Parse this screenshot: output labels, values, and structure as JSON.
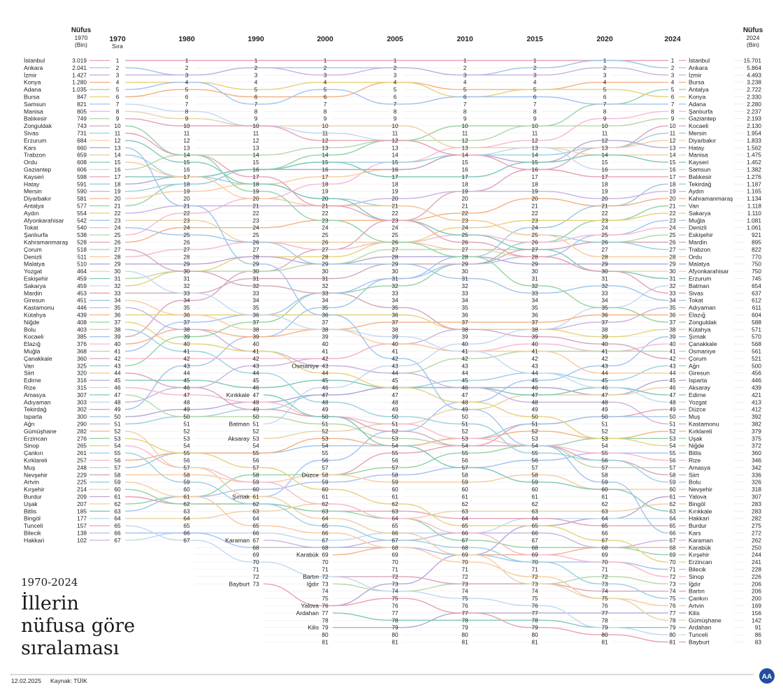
{
  "chart_data": {
    "type": "bump",
    "title": "İllerin nüfusa göre sıralaması",
    "title_lines": [
      "İllerin",
      "nüfusa göre",
      "sıralaması"
    ],
    "period": "1970-2024",
    "years": [
      "1970",
      "1980",
      "1990",
      "2000",
      "2005",
      "2010",
      "2015",
      "2020",
      "2024"
    ],
    "rank_header": "Sıra",
    "left_header": {
      "line1": "Nüfus",
      "line2": "1970",
      "line3": "(Bin)"
    },
    "right_header": {
      "line1": "Nüfus",
      "line2": "2024",
      "line3": "(Bin)"
    },
    "date": "12.02.2025",
    "source": "Kaynak: TÜİK",
    "logo_text": "AA",
    "palette": [
      "#e8a0b4",
      "#9fc5e8",
      "#c9b3e0",
      "#f4b183",
      "#93d3a2",
      "#e6d27a",
      "#a4c2f4",
      "#f6b8d0",
      "#b6d7a8",
      "#d5a6bd",
      "#9ad0e0",
      "#f9cb9c",
      "#b4a7d6",
      "#ead1a4",
      "#7fc8b6",
      "#c2d8f2"
    ],
    "lines_1970": {
      "ranks": [
        1,
        2,
        3,
        4,
        5,
        6,
        7,
        8,
        9,
        10,
        11,
        12,
        13,
        14,
        15,
        16,
        17,
        18,
        19,
        20,
        21,
        22,
        23,
        24,
        25,
        26,
        27,
        28,
        29,
        30,
        31,
        32,
        33,
        34,
        35,
        36,
        37,
        38,
        39,
        40,
        41,
        42,
        43,
        44,
        45,
        46,
        47,
        48,
        49,
        50,
        51,
        52,
        53,
        54,
        55,
        56,
        57,
        58,
        59,
        60,
        61,
        62,
        63,
        64,
        65,
        66,
        67
      ],
      "provinces": [
        "İstanbul",
        "Ankara",
        "İzmir",
        "Konya",
        "Adana",
        "Bursa",
        "Samsun",
        "Manisa",
        "Balıkesir",
        "Zonguldak",
        "Sivas",
        "Erzurum",
        "Kars",
        "Trabzon",
        "Ordu",
        "Gaziantep",
        "Kayseri",
        "Hatay",
        "Mersin",
        "Diyarbakır",
        "Antalya",
        "Aydın",
        "Afyonkarahisar",
        "Tokat",
        "Şanlıurfa",
        "Kahramanmaraş",
        "Çorum",
        "Denizli",
        "Malatya",
        "Yozgat",
        "Eskişehir",
        "Sakarya",
        "Mardin",
        "Giresun",
        "Kastamonu",
        "Kütahya",
        "Niğde",
        "Bolu",
        "Kocaeli",
        "Elazığ",
        "Muğla",
        "Çanakkale",
        "Van",
        "Siirt",
        "Edirne",
        "Rize",
        "Amasya",
        "Adıyaman",
        "Tekirdağ",
        "Isparta",
        "Ağrı",
        "Gümüşhane",
        "Erzincan",
        "Sinop",
        "Çankırı",
        "Kırklareli",
        "Muş",
        "Nevşehir",
        "Artvin",
        "Kırşehir",
        "Burdur",
        "Uşak",
        "Bitlis",
        "Bingöl",
        "Tunceli",
        "Bilecik",
        "Hakkari"
      ],
      "population": [
        "3.019",
        "2.041",
        "1.427",
        "1.280",
        "1.035",
        "847",
        "821",
        "805",
        "749",
        "743",
        "731",
        "684",
        "660",
        "659",
        "608",
        "606",
        "598",
        "591",
        "590",
        "581",
        "577",
        "554",
        "542",
        "540",
        "538",
        "528",
        "518",
        "511",
        "510",
        "464",
        "459",
        "459",
        "453",
        "451",
        "446",
        "439",
        "408",
        "403",
        "385",
        "376",
        "368",
        "360",
        "325",
        "320",
        "316",
        "315",
        "307",
        "303",
        "302",
        "300",
        "290",
        "282",
        "276",
        "265",
        "261",
        "257",
        "248",
        "229",
        "225",
        "214",
        "209",
        "207",
        "185",
        "177",
        "157",
        "138",
        "102"
      ]
    },
    "lines_2024": {
      "ranks": [
        1,
        2,
        3,
        4,
        5,
        6,
        7,
        8,
        9,
        10,
        11,
        12,
        13,
        14,
        15,
        16,
        17,
        18,
        19,
        20,
        21,
        22,
        23,
        24,
        25,
        26,
        27,
        28,
        29,
        30,
        31,
        32,
        33,
        34,
        35,
        36,
        37,
        38,
        39,
        40,
        41,
        42,
        43,
        44,
        45,
        46,
        47,
        48,
        49,
        50,
        51,
        52,
        53,
        54,
        55,
        56,
        57,
        58,
        59,
        60,
        61,
        62,
        63,
        64,
        65,
        66,
        67,
        68,
        69,
        70,
        71,
        72,
        73,
        74,
        75,
        76,
        77,
        78,
        79,
        80,
        81
      ],
      "provinces": [
        "İstanbul",
        "Ankara",
        "İzmir",
        "Bursa",
        "Antalya",
        "Konya",
        "Adana",
        "Şanlıurfa",
        "Gaziantep",
        "Kocaeli",
        "Mersin",
        "Diyarbakır",
        "Hatay",
        "Manisa",
        "Kayseri",
        "Samsun",
        "Balıkesir",
        "Tekirdağ",
        "Aydın",
        "Kahramanmaraş",
        "Van",
        "Sakarya",
        "Muğla",
        "Denizli",
        "Eskişehir",
        "Mardin",
        "Trabzon",
        "Ordu",
        "Malatya",
        "Afyonkarahisar",
        "Erzurum",
        "Batman",
        "Sivas",
        "Tokat",
        "Adıyaman",
        "Elazığ",
        "Zonguldak",
        "Kütahya",
        "Şırnak",
        "Çanakkale",
        "Osmaniye",
        "Çorum",
        "Ağrı",
        "Giresun",
        "Isparta",
        "Aksaray",
        "Edirne",
        "Yozgat",
        "Düzce",
        "Muş",
        "Kastamonu",
        "Kırklareli",
        "Uşak",
        "Niğde",
        "Bitlis",
        "Rize",
        "Amasya",
        "Siirt",
        "Bolu",
        "Nevşehir",
        "Yalova",
        "Bingöl",
        "Kırıkkale",
        "Hakkari",
        "Burdur",
        "Kars",
        "Karaman",
        "Karabük",
        "Kırşehir",
        "Erzincan",
        "Bilecik",
        "Sinop",
        "Iğdır",
        "Bartın",
        "Çankırı",
        "Artvin",
        "Kilis",
        "Gümüşhane",
        "Ardahan",
        "Tunceli",
        "Bayburt"
      ],
      "population": [
        "15.701",
        "5.864",
        "4.493",
        "3.238",
        "2.722",
        "2.330",
        "2.280",
        "2.237",
        "2.193",
        "2.130",
        "1.954",
        "1.833",
        "1.562",
        "1.475",
        "1.452",
        "1.382",
        "1.276",
        "1.187",
        "1.165",
        "1.134",
        "1.118",
        "1.110",
        "1.081",
        "1.061",
        "921",
        "895",
        "822",
        "770",
        "750",
        "750",
        "745",
        "654",
        "637",
        "612",
        "611",
        "604",
        "588",
        "571",
        "570",
        "568",
        "561",
        "521",
        "500",
        "456",
        "446",
        "439",
        "421",
        "413",
        "412",
        "392",
        "382",
        "379",
        "375",
        "372",
        "360",
        "346",
        "342",
        "336",
        "326",
        "318",
        "307",
        "283",
        "283",
        "282",
        "275",
        "272",
        "262",
        "250",
        "244",
        "241",
        "228",
        "226",
        "206",
        "206",
        "200",
        "169",
        "156",
        "142",
        "91",
        "86",
        "83"
      ]
    },
    "new_provinces": [
      {
        "name": "Kırıkkale",
        "year": "1990",
        "rank": "47"
      },
      {
        "name": "Batman",
        "year": "1990",
        "rank": "51"
      },
      {
        "name": "Aksaray",
        "year": "1990",
        "rank": "53"
      },
      {
        "name": "Şırnak",
        "year": "1990",
        "rank": "61"
      },
      {
        "name": "Karaman",
        "year": "1990",
        "rank": "67"
      },
      {
        "name": "Bayburt",
        "year": "1990",
        "rank": "73"
      },
      {
        "name": "Osmaniye",
        "year": "2000",
        "rank": "43"
      },
      {
        "name": "Düzce",
        "year": "2000",
        "rank": "58"
      },
      {
        "name": "Karabük",
        "year": "2000",
        "rank": "69"
      },
      {
        "name": "Bartın",
        "year": "2000",
        "rank": "72"
      },
      {
        "name": "Iğdır",
        "year": "2000",
        "rank": "73"
      },
      {
        "name": "Yalova",
        "year": "2000",
        "rank": "76"
      },
      {
        "name": "Ardahan",
        "year": "2000",
        "rank": "77"
      },
      {
        "name": "Kilis",
        "year": "2000",
        "rank": "79"
      }
    ],
    "rank_counts": [
      67,
      67,
      73,
      81,
      81,
      81,
      81,
      81,
      81
    ]
  }
}
